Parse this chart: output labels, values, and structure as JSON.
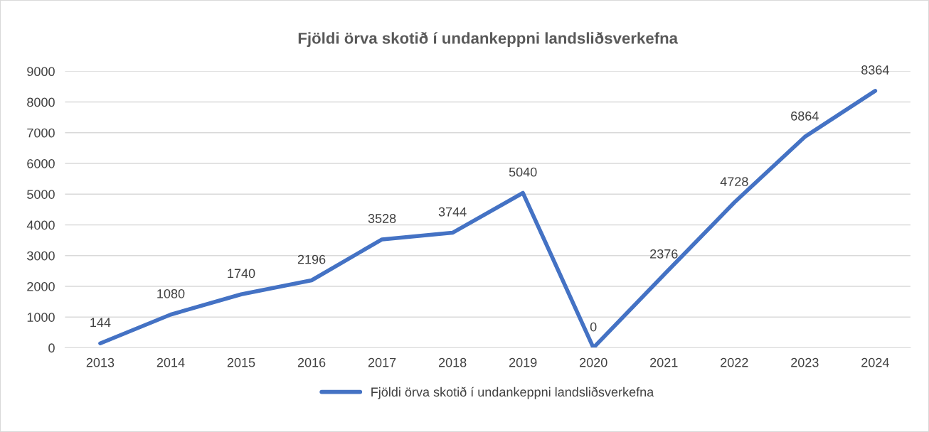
{
  "chart_data": {
    "type": "line",
    "title": "Fjöldi örva skotið í undankeppni landsliðsverkefna",
    "categories": [
      "2013",
      "2014",
      "2015",
      "2016",
      "2017",
      "2018",
      "2019",
      "2020",
      "2021",
      "2022",
      "2023",
      "2024"
    ],
    "series": [
      {
        "name": "Fjöldi örva skotið í undankeppni landsliðsverkefna",
        "color": "#4472c4",
        "values": [
          144,
          1080,
          1740,
          2196,
          3528,
          3744,
          5040,
          0,
          2376,
          4728,
          6864,
          8364
        ]
      }
    ],
    "ylim": [
      0,
      9000
    ],
    "yticks": [
      0,
      1000,
      2000,
      3000,
      4000,
      5000,
      6000,
      7000,
      8000,
      9000
    ],
    "grid": "y",
    "legend": "bottom",
    "data_labels": true,
    "marker": "none",
    "line_style": "solid"
  }
}
